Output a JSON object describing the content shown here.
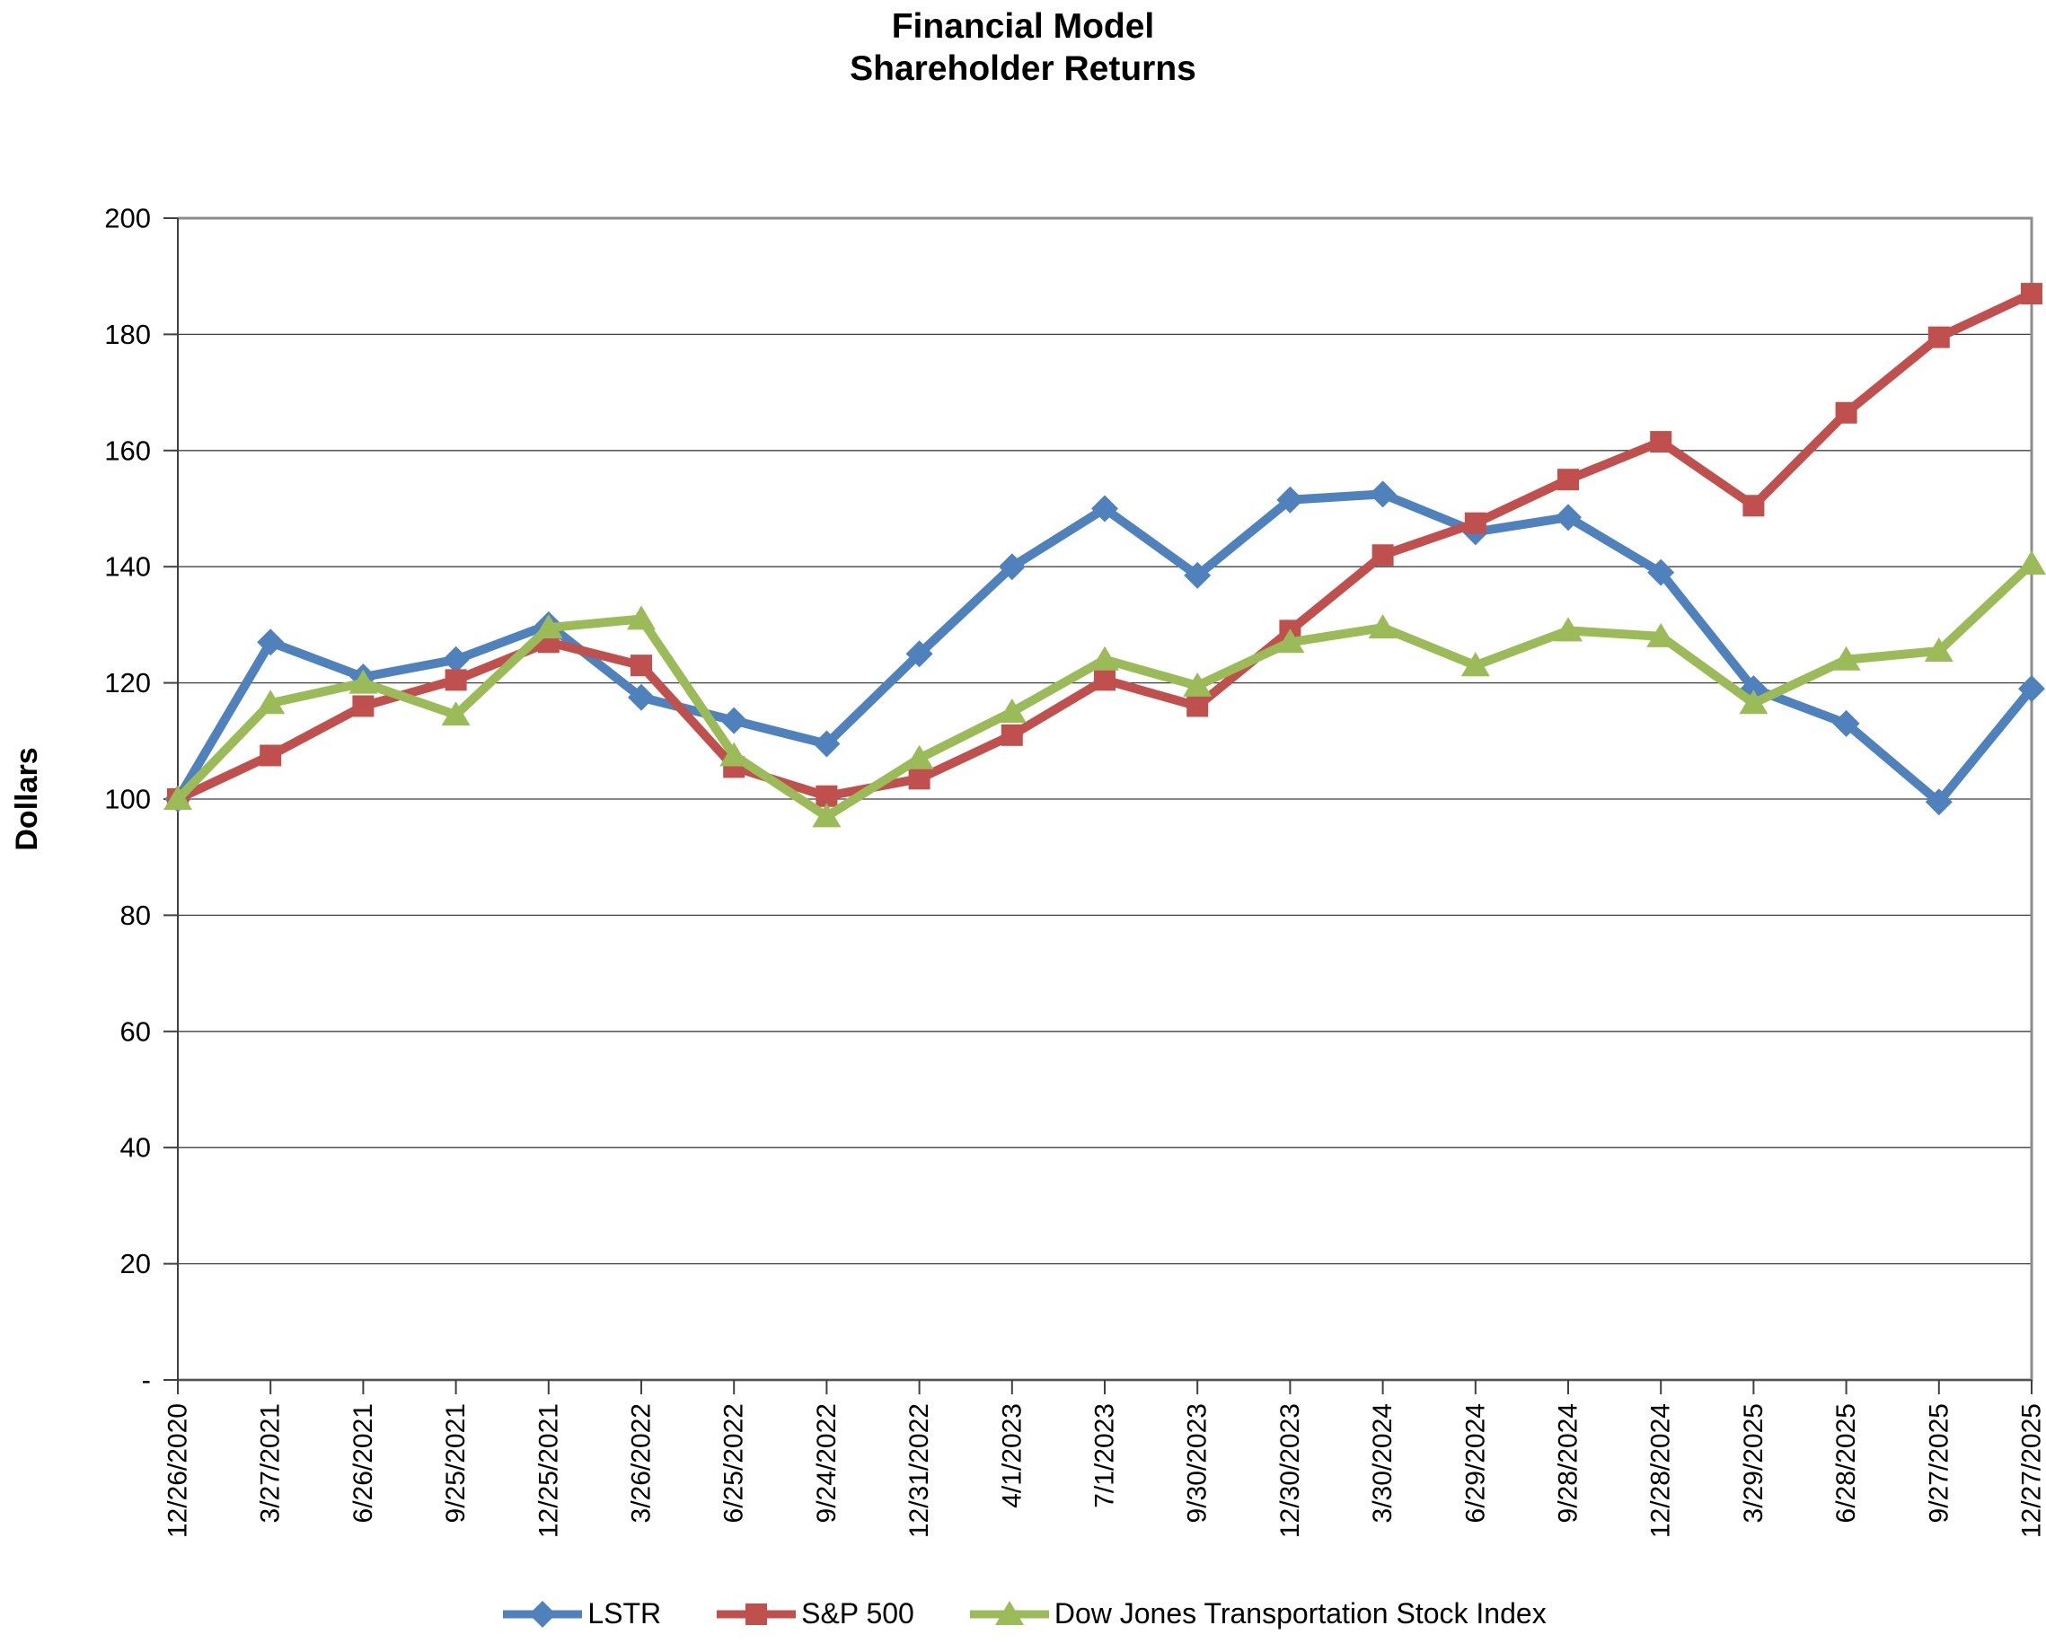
{
  "chart_data": {
    "type": "line",
    "title_line1": "Financial Model",
    "title_line2": "Shareholder Returns",
    "ylabel": "Dollars",
    "ylim": [
      0,
      200
    ],
    "grid": "horizontal",
    "legend_position": "bottom-center",
    "x_label_rotation_deg": -90,
    "yticks": [
      {
        "value": 0,
        "label": "-"
      },
      {
        "value": 20,
        "label": "20"
      },
      {
        "value": 40,
        "label": "40"
      },
      {
        "value": 60,
        "label": "60"
      },
      {
        "value": 80,
        "label": "80"
      },
      {
        "value": 100,
        "label": "100"
      },
      {
        "value": 120,
        "label": "120"
      },
      {
        "value": 140,
        "label": "140"
      },
      {
        "value": 160,
        "label": "160"
      },
      {
        "value": 180,
        "label": "180"
      },
      {
        "value": 200,
        "label": "200"
      }
    ],
    "categories": [
      "12/26/2020",
      "3/27/2021",
      "6/26/2021",
      "9/25/2021",
      "12/25/2021",
      "3/26/2022",
      "6/25/2022",
      "9/24/2022",
      "12/31/2022",
      "4/1/2023",
      "7/1/2023",
      "9/30/2023",
      "12/30/2023",
      "3/30/2024",
      "6/29/2024",
      "9/28/2024",
      "12/28/2024",
      "3/29/2025",
      "6/28/2025",
      "9/27/2025",
      "12/27/2025"
    ],
    "series": [
      {
        "name": "LSTR",
        "color": "#4F81BD",
        "marker": "diamond",
        "values": [
          100,
          127,
          121,
          124,
          130,
          117.5,
          113.5,
          109.5,
          125,
          140,
          150,
          138.5,
          151.5,
          152.5,
          146,
          148.5,
          139,
          119,
          113,
          99.5,
          119
        ]
      },
      {
        "name": "S&P 500",
        "color": "#C0504D",
        "marker": "square",
        "values": [
          100,
          107.5,
          116,
          120.5,
          127,
          123,
          105.5,
          100.5,
          103.5,
          111,
          120.5,
          116,
          129,
          142,
          147.5,
          155,
          161.5,
          150.5,
          166.5,
          179.5,
          187
        ]
      },
      {
        "name": "Dow Jones Transportation Stock Index",
        "color": "#9BBB59",
        "marker": "triangle",
        "values": [
          100,
          116.5,
          120,
          114.5,
          129.5,
          131,
          107.5,
          97,
          107,
          115,
          124,
          119.5,
          127,
          129.5,
          123,
          129,
          128,
          116.5,
          124,
          125.5,
          140.5
        ]
      }
    ],
    "colors": {
      "gridline": "#404040",
      "frame": "#8C8C8C",
      "axis": "#404040",
      "text": "#000000"
    }
  }
}
